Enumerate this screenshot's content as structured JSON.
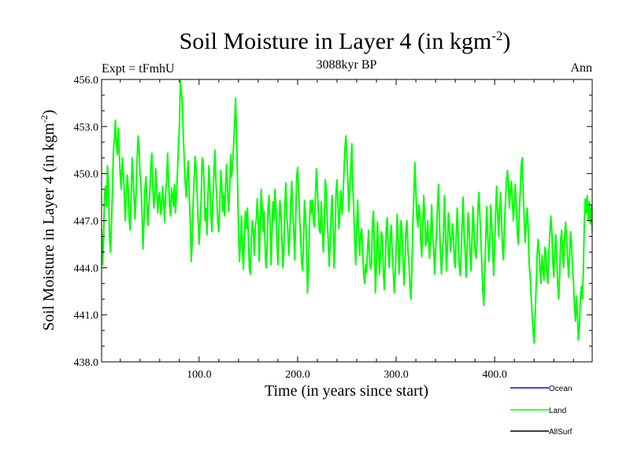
{
  "chart_data": {
    "type": "line",
    "title": "Soil Moisture in Layer 4 (in kgm",
    "title_sup": "-2",
    "title_close": ")",
    "subtitle_left": "Expt = tFmhU",
    "subtitle_center": "3088kyr BP",
    "subtitle_right": "Ann",
    "xlabel": "Time (in years since start)",
    "ylabel": "Soil Moisture in Layer 4 (in kgm",
    "ylabel_sup": "-2",
    "ylabel_close": ")",
    "xlim": [
      1,
      499
    ],
    "ylim": [
      438.0,
      456.0
    ],
    "xticks": [
      100,
      200,
      300,
      400
    ],
    "xtick_labels": [
      "100.0",
      "200.0",
      "300.0",
      "400.0"
    ],
    "yticks": [
      438,
      441,
      444,
      447,
      450,
      453,
      456
    ],
    "ytick_labels": [
      "438.0",
      "441.0",
      "444.0",
      "447.0",
      "450.0",
      "453.0",
      "456.0"
    ],
    "legend": [
      {
        "name": "Ocean",
        "color": "#0000ff"
      },
      {
        "name": "Land",
        "color": "#00ff00"
      },
      {
        "name": "AllSurf",
        "color": "#000000"
      }
    ],
    "series": [
      {
        "name": "Land",
        "color": "#00ff00",
        "x_start": 1,
        "x_step": 1,
        "values": [
          446.5,
          444.2,
          445.8,
          448.6,
          449.2,
          447.9,
          450.5,
          449.4,
          446.0,
          445.0,
          446.7,
          448.8,
          451.5,
          452.2,
          453.4,
          452.0,
          451.2,
          452.9,
          451.2,
          449.8,
          449.0,
          451.0,
          450.2,
          448.8,
          447.0,
          448.4,
          449.9,
          449.1,
          447.1,
          446.4,
          448.6,
          451.0,
          449.8,
          448.5,
          447.1,
          448.8,
          450.7,
          452.4,
          451.7,
          450.0,
          449.2,
          447.5,
          445.2,
          446.9,
          449.0,
          449.8,
          448.3,
          446.7,
          447.9,
          448.8,
          450.6,
          451.3,
          449.2,
          447.8,
          448.7,
          450.3,
          449.0,
          447.5,
          448.6,
          448.8,
          447.4,
          447.8,
          449.2,
          448.2,
          446.9,
          448.8,
          449.6,
          451.3,
          449.5,
          448.0,
          447.3,
          449.1,
          448.6,
          447.9,
          449.3,
          447.5,
          448.6,
          450.0,
          451.8,
          453.0,
          455.9,
          455.2,
          454.6,
          452.4,
          450.7,
          449.3,
          448.5,
          450.0,
          450.8,
          448.5,
          447.0,
          444.4,
          445.6,
          448.2,
          449.8,
          451.1,
          450.3,
          448.8,
          447.0,
          445.5,
          446.9,
          448.1,
          451.0,
          450.8,
          449.4,
          447.0,
          447.8,
          446.1,
          448.6,
          450.5,
          449.1,
          447.4,
          446.3,
          448.4,
          450.0,
          451.5,
          449.5,
          448.4,
          446.9,
          446.3,
          448.0,
          450.2,
          449.2,
          447.6,
          448.6,
          447.3,
          449.5,
          450.6,
          448.8,
          447.6,
          449.0,
          451.2,
          449.8,
          450.5,
          451.8,
          453.2,
          454.8,
          452.6,
          449.5,
          446.3,
          444.4,
          445.6,
          447.3,
          445.2,
          443.9,
          446.1,
          447.6,
          446.5,
          447.8,
          446.0,
          444.0,
          443.6,
          445.9,
          447.0,
          446.3,
          444.8,
          446.6,
          447.0,
          448.4,
          447.1,
          444.4,
          446.4,
          449.0,
          447.9,
          446.3,
          447.6,
          445.4,
          444.0,
          445.2,
          447.9,
          448.6,
          446.8,
          444.2,
          446.4,
          448.2,
          447.0,
          449.0,
          447.7,
          445.6,
          444.2,
          446.5,
          448.3,
          447.6,
          446.0,
          444.0,
          445.1,
          447.9,
          449.4,
          447.3,
          446.5,
          444.8,
          446.0,
          448.2,
          449.5,
          447.6,
          446.5,
          444.5,
          446.8,
          449.8,
          450.4,
          449.0,
          447.2,
          446.0,
          444.4,
          443.8,
          445.7,
          448.3,
          447.5,
          445.5,
          442.4,
          443.8,
          446.8,
          448.3,
          447.5,
          448.3,
          447.0,
          446.6,
          448.5,
          450.3,
          449.1,
          447.6,
          446.4,
          446.2,
          448.2,
          446.7,
          445.0,
          446.6,
          449.6,
          449.1,
          447.0,
          445.8,
          444.1,
          445.5,
          447.5,
          448.6,
          446.6,
          444.0,
          445.9,
          448.9,
          449.6,
          448.0,
          446.5,
          447.8,
          448.9,
          447.4,
          448.4,
          450.0,
          451.6,
          452.4,
          451.0,
          449.6,
          447.6,
          449.0,
          450.4,
          451.9,
          449.2,
          447.6,
          445.6,
          444.2,
          446.8,
          448.3,
          446.0,
          444.8,
          446.2,
          446.5,
          445.0,
          443.6,
          443.0,
          444.2,
          443.7,
          445.2,
          446.4,
          444.7,
          443.9,
          444.3,
          446.9,
          447.6,
          445.0,
          442.4,
          444.3,
          446.9,
          445.3,
          443.6,
          444.8,
          446.3,
          445.9,
          443.8,
          442.6,
          444.2,
          446.6,
          447.2,
          445.0,
          444.0,
          445.9,
          446.7,
          445.0,
          443.9,
          442.4,
          443.5,
          445.1,
          447.4,
          446.0,
          443.6,
          445.2,
          447.0,
          446.1,
          444.5,
          442.9,
          444.5,
          446.5,
          447.0,
          445.1,
          444.3,
          442.8,
          442.0,
          444.0,
          446.9,
          448.6,
          450.7,
          449.0,
          447.3,
          446.6,
          448.0,
          447.5,
          445.7,
          444.7,
          446.8,
          448.6,
          447.3,
          445.4,
          445.8,
          447.0,
          445.5,
          444.6,
          446.0,
          448.0,
          446.2,
          445.3,
          443.6,
          445.0,
          446.3,
          448.0,
          449.3,
          446.8,
          444.8,
          443.6,
          444.9,
          446.1,
          448.6,
          446.5,
          443.8,
          445.2,
          447.5,
          446.8,
          445.0,
          445.6,
          446.8,
          446.2,
          444.4,
          444.0,
          446.2,
          447.8,
          446.0,
          444.2,
          443.5,
          444.8,
          446.8,
          448.5,
          446.2,
          445.1,
          443.4,
          445.0,
          447.5,
          446.7,
          445.0,
          443.8,
          445.8,
          447.9,
          446.5,
          445.2,
          444.6,
          445.4,
          447.8,
          448.8,
          447.3,
          445.8,
          444.2,
          442.5,
          441.6,
          443.6,
          446.1,
          447.9,
          446.0,
          444.4,
          445.5,
          448.0,
          446.8,
          445.1,
          443.5,
          445.4,
          447.6,
          449.2,
          447.5,
          446.0,
          447.7,
          448.8,
          447.0,
          445.2,
          444.5,
          446.7,
          448.3,
          449.6,
          450.2,
          449.4,
          447.8,
          449.0,
          449.5,
          448.2,
          447.0,
          448.0,
          449.3,
          448.0,
          446.2,
          445.5,
          447.6,
          448.9,
          450.6,
          451.0,
          448.8,
          447.0,
          445.6,
          446.8,
          447.8,
          446.6,
          444.3,
          443.5,
          442.2,
          441.1,
          440.0,
          439.2,
          440.8,
          442.6,
          444.6,
          445.8,
          445.2,
          443.8,
          443.0,
          444.8,
          444.0,
          443.2,
          445.3,
          445.0,
          443.6,
          443.0,
          444.9,
          446.2,
          447.3,
          446.3,
          444.4,
          443.4,
          445.0,
          446.1,
          444.7,
          443.0,
          442.0,
          443.6,
          445.8,
          446.4,
          444.8,
          444.0,
          445.9,
          446.9,
          446.0,
          444.6,
          443.4,
          444.8,
          446.3,
          445.6,
          444.0,
          443.1,
          441.5,
          440.6,
          442.2,
          441.0,
          439.4,
          440.2,
          442.0,
          442.8,
          442.0,
          443.8,
          446.8,
          448.4,
          447.5,
          448.6,
          447.0,
          448.2,
          446.8,
          447.9,
          446.4,
          445.6
        ]
      }
    ]
  }
}
